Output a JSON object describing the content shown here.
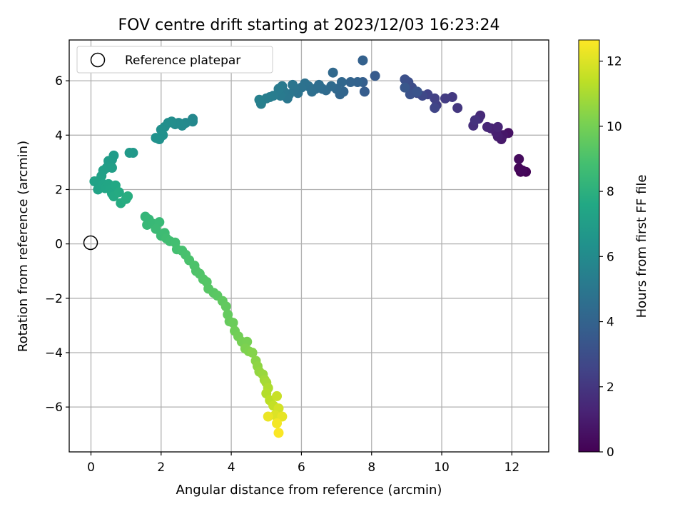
{
  "chart_data": {
    "type": "scatter",
    "title": "FOV centre drift starting at 2023/12/03 16:23:24",
    "xlabel": "Angular distance from reference (arcmin)",
    "ylabel": "Rotation from reference (arcmin)",
    "xlim": [
      -0.62,
      13.05
    ],
    "ylim": [
      -7.65,
      7.5
    ],
    "xticks": [
      0,
      2,
      4,
      6,
      8,
      10,
      12
    ],
    "yticks": [
      -6,
      -4,
      -2,
      0,
      2,
      4,
      6
    ],
    "grid": true,
    "legend": {
      "placement": "top-left",
      "entries": [
        "Reference platepar"
      ]
    },
    "reference_point": {
      "x": 0,
      "y": 0,
      "label": "Reference platepar"
    },
    "colorbar": {
      "label": "Hours from first FF file",
      "range": [
        0,
        12.65
      ],
      "ticks": [
        0,
        2,
        4,
        6,
        8,
        10,
        12
      ],
      "colormap": "viridis"
    },
    "series": [
      {
        "points": [
          [
            12.25,
            2.65,
            0.0
          ],
          [
            12.4,
            2.65,
            0.1
          ],
          [
            12.2,
            2.78,
            0.2
          ],
          [
            12.3,
            2.7,
            0.25
          ],
          [
            12.2,
            3.12,
            0.35
          ],
          [
            11.9,
            4.08,
            0.6
          ],
          [
            11.75,
            4.0,
            0.75
          ],
          [
            11.7,
            3.85,
            0.85
          ],
          [
            11.6,
            3.95,
            1.0
          ],
          [
            11.55,
            4.1,
            1.1
          ],
          [
            11.4,
            4.25,
            1.2
          ],
          [
            11.6,
            4.3,
            1.3
          ],
          [
            11.3,
            4.3,
            1.4
          ],
          [
            11.1,
            4.72,
            1.5
          ],
          [
            11.05,
            4.6,
            1.6
          ],
          [
            10.9,
            4.35,
            1.7
          ],
          [
            10.95,
            4.55,
            1.8
          ],
          [
            10.45,
            5.0,
            2.0
          ],
          [
            10.3,
            5.4,
            2.1
          ],
          [
            10.1,
            5.35,
            2.2
          ],
          [
            9.85,
            5.1,
            2.3
          ],
          [
            9.8,
            5.35,
            2.4
          ],
          [
            9.6,
            5.5,
            2.5
          ],
          [
            9.8,
            5.0,
            2.6
          ],
          [
            9.45,
            5.45,
            2.7
          ],
          [
            9.3,
            5.55,
            2.8
          ],
          [
            9.15,
            5.75,
            2.9
          ],
          [
            9.05,
            5.95,
            3.0
          ],
          [
            8.95,
            6.05,
            3.1
          ],
          [
            9.1,
            5.5,
            3.2
          ],
          [
            9.3,
            5.6,
            3.3
          ],
          [
            8.95,
            5.75,
            3.4
          ],
          [
            8.1,
            6.18,
            3.6
          ],
          [
            7.8,
            5.6,
            3.7
          ],
          [
            7.75,
            5.95,
            3.8
          ],
          [
            7.75,
            6.75,
            3.9
          ],
          [
            7.6,
            5.95,
            4.0
          ],
          [
            7.4,
            5.95,
            4.05
          ],
          [
            7.2,
            5.6,
            4.1
          ],
          [
            7.1,
            5.5,
            4.15
          ],
          [
            7.15,
            5.95,
            4.2
          ],
          [
            7.0,
            5.7,
            4.25
          ],
          [
            6.9,
            6.3,
            4.3
          ],
          [
            6.85,
            5.8,
            4.35
          ],
          [
            6.7,
            5.65,
            4.4
          ],
          [
            6.6,
            5.7,
            4.45
          ],
          [
            6.5,
            5.85,
            4.5
          ],
          [
            6.4,
            5.7,
            4.55
          ],
          [
            6.3,
            5.6,
            4.6
          ],
          [
            6.2,
            5.8,
            4.65
          ],
          [
            6.1,
            5.9,
            4.7
          ],
          [
            6.0,
            5.75,
            4.75
          ],
          [
            5.9,
            5.55,
            4.8
          ],
          [
            5.8,
            5.7,
            4.85
          ],
          [
            5.75,
            5.85,
            4.9
          ],
          [
            5.65,
            5.5,
            4.95
          ],
          [
            5.6,
            5.35,
            5.0
          ],
          [
            5.5,
            5.6,
            5.05
          ],
          [
            5.45,
            5.8,
            5.1
          ],
          [
            5.4,
            5.45,
            5.15
          ],
          [
            5.35,
            5.7,
            5.2
          ],
          [
            5.2,
            5.45,
            5.25
          ],
          [
            5.1,
            5.4,
            5.3
          ],
          [
            5.0,
            5.35,
            5.35
          ],
          [
            4.85,
            5.15,
            5.4
          ],
          [
            4.8,
            5.3,
            5.45
          ],
          [
            2.9,
            4.6,
            5.8
          ],
          [
            2.9,
            4.5,
            5.85
          ],
          [
            2.7,
            4.45,
            5.9
          ],
          [
            2.6,
            4.35,
            5.95
          ],
          [
            2.5,
            4.45,
            6.0
          ],
          [
            2.4,
            4.4,
            6.05
          ],
          [
            2.3,
            4.5,
            6.1
          ],
          [
            2.2,
            4.45,
            6.15
          ],
          [
            2.1,
            4.3,
            6.2
          ],
          [
            2.0,
            4.2,
            6.25
          ],
          [
            2.05,
            4.0,
            6.3
          ],
          [
            1.95,
            3.85,
            6.35
          ],
          [
            1.85,
            3.9,
            6.4
          ],
          [
            1.2,
            3.35,
            6.7
          ],
          [
            1.1,
            3.35,
            6.75
          ],
          [
            0.65,
            3.25,
            6.85
          ],
          [
            0.6,
            3.1,
            6.9
          ],
          [
            0.5,
            3.05,
            6.95
          ],
          [
            0.45,
            2.8,
            7.0
          ],
          [
            0.6,
            2.8,
            7.05
          ],
          [
            0.35,
            2.7,
            7.1
          ],
          [
            0.3,
            2.5,
            7.15
          ],
          [
            0.25,
            2.35,
            7.2
          ],
          [
            0.1,
            2.3,
            7.25
          ],
          [
            0.2,
            2.0,
            7.3
          ],
          [
            0.35,
            2.2,
            7.35
          ],
          [
            0.4,
            2.05,
            7.4
          ],
          [
            0.5,
            2.2,
            7.45
          ],
          [
            0.55,
            2.0,
            7.5
          ],
          [
            0.6,
            1.85,
            7.55
          ],
          [
            0.7,
            2.15,
            7.6
          ],
          [
            0.65,
            1.75,
            7.65
          ],
          [
            0.8,
            1.9,
            7.7
          ],
          [
            0.85,
            1.5,
            7.75
          ],
          [
            1.0,
            1.65,
            7.8
          ],
          [
            1.05,
            1.75,
            7.85
          ],
          [
            1.55,
            1.0,
            8.3
          ],
          [
            1.65,
            0.9,
            8.35
          ],
          [
            1.6,
            0.7,
            8.4
          ],
          [
            1.75,
            0.75,
            8.45
          ],
          [
            1.95,
            0.8,
            8.5
          ],
          [
            1.85,
            0.55,
            8.55
          ],
          [
            2.0,
            0.3,
            8.6
          ],
          [
            2.1,
            0.4,
            8.65
          ],
          [
            2.15,
            0.2,
            8.7
          ],
          [
            2.25,
            0.1,
            8.75
          ],
          [
            2.4,
            0.05,
            8.8
          ],
          [
            2.45,
            -0.2,
            8.85
          ],
          [
            2.6,
            -0.25,
            8.9
          ],
          [
            2.7,
            -0.4,
            8.95
          ],
          [
            2.8,
            -0.6,
            9.0
          ],
          [
            2.95,
            -0.8,
            9.05
          ],
          [
            3.0,
            -1.0,
            9.1
          ],
          [
            3.1,
            -1.1,
            9.15
          ],
          [
            3.2,
            -1.3,
            9.2
          ],
          [
            3.3,
            -1.4,
            9.25
          ],
          [
            3.35,
            -1.65,
            9.3
          ],
          [
            3.5,
            -1.8,
            9.35
          ],
          [
            3.6,
            -1.9,
            9.4
          ],
          [
            3.75,
            -2.1,
            9.5
          ],
          [
            3.85,
            -2.3,
            9.55
          ],
          [
            3.9,
            -2.6,
            9.6
          ],
          [
            3.95,
            -2.85,
            9.65
          ],
          [
            4.05,
            -2.9,
            9.75
          ],
          [
            4.1,
            -3.2,
            9.85
          ],
          [
            4.2,
            -3.4,
            9.9
          ],
          [
            4.3,
            -3.6,
            10.0
          ],
          [
            4.45,
            -3.6,
            10.05
          ],
          [
            4.4,
            -3.85,
            10.15
          ],
          [
            4.5,
            -3.95,
            10.2
          ],
          [
            4.6,
            -4.0,
            10.3
          ],
          [
            4.7,
            -4.3,
            10.4
          ],
          [
            4.75,
            -4.5,
            10.5
          ],
          [
            4.8,
            -4.7,
            10.6
          ],
          [
            4.9,
            -4.8,
            10.7
          ],
          [
            4.95,
            -5.0,
            10.85
          ],
          [
            5.0,
            -5.1,
            10.95
          ],
          [
            5.05,
            -5.3,
            11.1
          ],
          [
            5.0,
            -5.5,
            11.2
          ],
          [
            5.1,
            -5.75,
            11.35
          ],
          [
            5.2,
            -5.95,
            11.5
          ],
          [
            5.3,
            -5.6,
            11.6
          ],
          [
            5.35,
            -6.05,
            11.8
          ],
          [
            5.25,
            -6.3,
            12.0
          ],
          [
            5.45,
            -6.35,
            12.2
          ],
          [
            5.05,
            -6.35,
            12.3
          ],
          [
            5.3,
            -6.6,
            12.45
          ],
          [
            5.35,
            -6.95,
            12.6
          ]
        ]
      }
    ]
  }
}
